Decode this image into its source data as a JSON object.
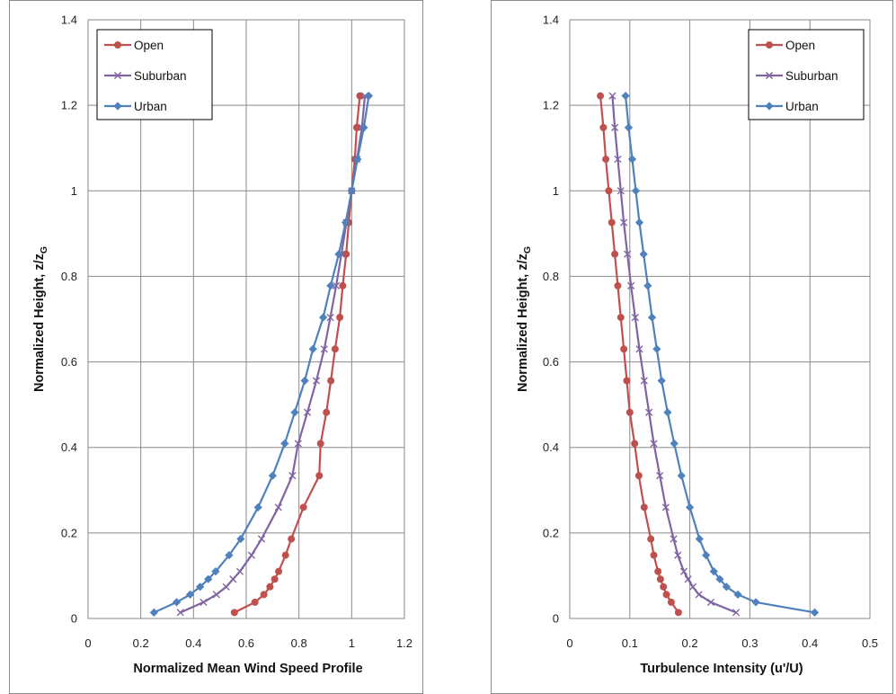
{
  "colors": {
    "open": "#c0504d",
    "suburban": "#8064a2",
    "urban": "#4f81bd",
    "grid": "#8a8a8a"
  },
  "chart_data": [
    {
      "type": "line",
      "xlabel": "Normalized Mean Wind Speed Profile",
      "ylabel_main": "Normalized Height, z/z",
      "ylabel_sub": "G",
      "xlim": [
        0,
        1.2
      ],
      "ylim": [
        0,
        1.4
      ],
      "xticks": [
        "0",
        "0.2",
        "0.4",
        "0.6",
        "0.8",
        "1",
        "1.2"
      ],
      "yticks": [
        "0",
        "0.2",
        "0.4",
        "0.6",
        "0.8",
        "1",
        "1.2",
        "1.4"
      ],
      "legend_position": "top-left",
      "series": [
        {
          "name": "Open",
          "marker": "circle",
          "color": "#c0504d",
          "x": [
            0.555,
            0.633,
            0.667,
            0.69,
            0.708,
            0.723,
            0.749,
            0.771,
            0.817,
            0.877,
            0.882,
            0.904,
            0.921,
            0.937,
            0.955,
            0.966,
            0.979,
            0.989,
            1.0,
            1.012,
            1.019,
            1.031
          ],
          "y": [
            0.014,
            0.038,
            0.056,
            0.074,
            0.092,
            0.11,
            0.148,
            0.186,
            0.26,
            0.334,
            0.409,
            0.482,
            0.556,
            0.63,
            0.704,
            0.778,
            0.852,
            0.926,
            1.0,
            1.074,
            1.148,
            1.222
          ]
        },
        {
          "name": "Suburban",
          "marker": "x",
          "color": "#8064a2",
          "x": [
            0.35,
            0.438,
            0.487,
            0.524,
            0.55,
            0.576,
            0.62,
            0.658,
            0.722,
            0.775,
            0.797,
            0.832,
            0.866,
            0.896,
            0.919,
            0.941,
            0.961,
            0.98,
            1.0,
            1.02,
            1.039,
            1.05
          ],
          "y": [
            0.014,
            0.038,
            0.056,
            0.074,
            0.092,
            0.11,
            0.148,
            0.186,
            0.26,
            0.334,
            0.409,
            0.482,
            0.556,
            0.63,
            0.704,
            0.778,
            0.852,
            0.926,
            1.0,
            1.074,
            1.148,
            1.222
          ]
        },
        {
          "name": "Urban",
          "marker": "diamond",
          "color": "#4f81bd",
          "x": [
            0.25,
            0.336,
            0.387,
            0.425,
            0.456,
            0.484,
            0.535,
            0.579,
            0.645,
            0.7,
            0.746,
            0.784,
            0.822,
            0.853,
            0.892,
            0.92,
            0.951,
            0.977,
            1.0,
            1.022,
            1.046,
            1.065
          ],
          "y": [
            0.014,
            0.038,
            0.056,
            0.074,
            0.092,
            0.11,
            0.148,
            0.186,
            0.26,
            0.334,
            0.409,
            0.482,
            0.556,
            0.63,
            0.704,
            0.778,
            0.852,
            0.926,
            1.0,
            1.074,
            1.148,
            1.222
          ]
        }
      ]
    },
    {
      "type": "line",
      "xlabel": "Turbulence Intensity (u'/U)",
      "ylabel_main": "Normalized Height, z/z",
      "ylabel_sub": "G",
      "xlim": [
        0,
        0.5
      ],
      "ylim": [
        0,
        1.4
      ],
      "xticks": [
        "0",
        "0.1",
        "0.2",
        "0.3",
        "0.4",
        "0.5"
      ],
      "yticks": [
        "0",
        "0.2",
        "0.4",
        "0.6",
        "0.8",
        "1",
        "1.2",
        "1.4"
      ],
      "legend_position": "top-right",
      "series": [
        {
          "name": "Open",
          "marker": "circle",
          "color": "#c0504d",
          "x": [
            0.181,
            0.169,
            0.161,
            0.156,
            0.151,
            0.147,
            0.14,
            0.135,
            0.124,
            0.115,
            0.108,
            0.1,
            0.095,
            0.09,
            0.085,
            0.08,
            0.075,
            0.07,
            0.065,
            0.06,
            0.056,
            0.051
          ],
          "y": [
            0.014,
            0.038,
            0.056,
            0.074,
            0.092,
            0.11,
            0.148,
            0.186,
            0.26,
            0.334,
            0.409,
            0.482,
            0.556,
            0.63,
            0.704,
            0.778,
            0.852,
            0.926,
            1.0,
            1.074,
            1.148,
            1.222
          ]
        },
        {
          "name": "Suburban",
          "marker": "x",
          "color": "#8064a2",
          "x": [
            0.277,
            0.235,
            0.215,
            0.205,
            0.197,
            0.19,
            0.18,
            0.173,
            0.16,
            0.15,
            0.14,
            0.132,
            0.124,
            0.116,
            0.109,
            0.102,
            0.096,
            0.09,
            0.085,
            0.08,
            0.075,
            0.071
          ],
          "y": [
            0.014,
            0.038,
            0.056,
            0.074,
            0.092,
            0.11,
            0.148,
            0.186,
            0.26,
            0.334,
            0.409,
            0.482,
            0.556,
            0.63,
            0.704,
            0.778,
            0.852,
            0.926,
            1.0,
            1.074,
            1.148,
            1.222
          ]
        },
        {
          "name": "Urban",
          "marker": "diamond",
          "color": "#4f81bd",
          "x": [
            0.408,
            0.31,
            0.28,
            0.261,
            0.25,
            0.24,
            0.227,
            0.216,
            0.2,
            0.186,
            0.174,
            0.163,
            0.153,
            0.145,
            0.137,
            0.13,
            0.123,
            0.116,
            0.11,
            0.104,
            0.098,
            0.093
          ],
          "y": [
            0.014,
            0.038,
            0.056,
            0.074,
            0.092,
            0.11,
            0.148,
            0.186,
            0.26,
            0.334,
            0.409,
            0.482,
            0.556,
            0.63,
            0.704,
            0.778,
            0.852,
            0.926,
            1.0,
            1.074,
            1.148,
            1.222
          ]
        }
      ]
    }
  ]
}
